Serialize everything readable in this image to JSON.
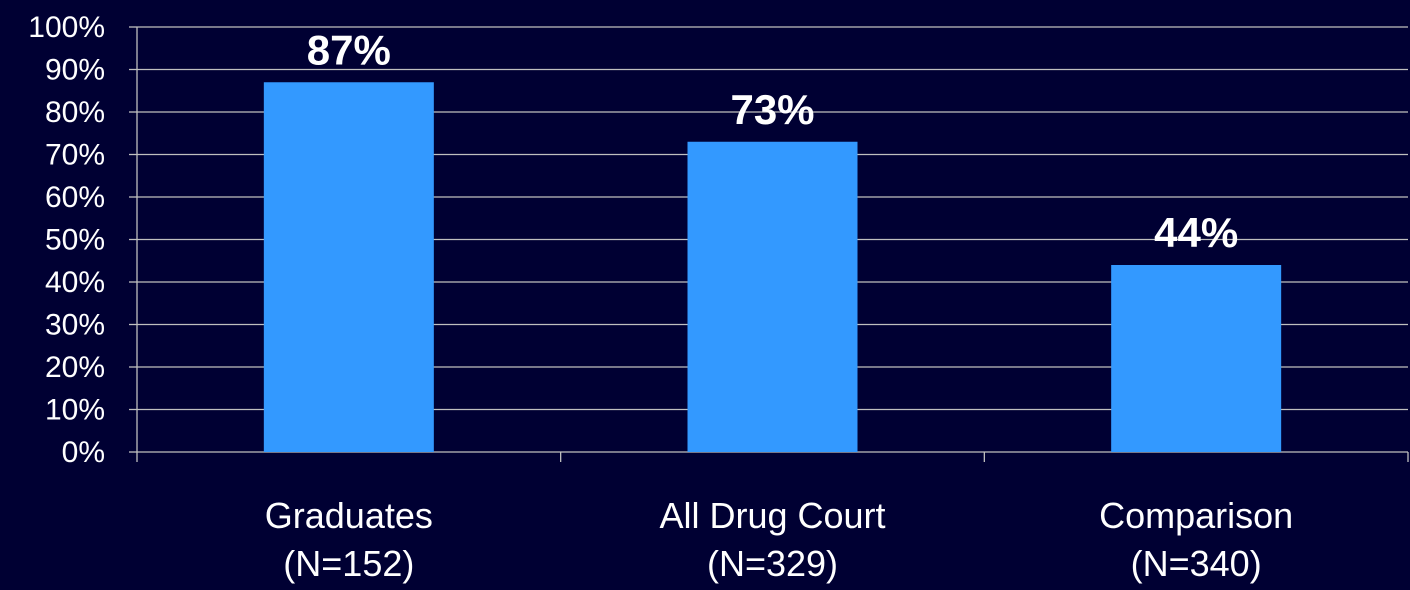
{
  "chart_data": {
    "type": "bar",
    "categories": [
      "Graduates",
      "All Drug Court",
      "Comparison"
    ],
    "category_sublabels": [
      "(N=152)",
      "(N=329)",
      "(N=340)"
    ],
    "values": [
      87,
      73,
      44
    ],
    "data_labels": [
      "87%",
      "73%",
      "44%"
    ],
    "ylim": [
      0,
      100
    ],
    "y_ticks": [
      0,
      10,
      20,
      30,
      40,
      50,
      60,
      70,
      80,
      90,
      100
    ],
    "y_tick_labels": [
      "0%",
      "10%",
      "20%",
      "30%",
      "40%",
      "50%",
      "60%",
      "70%",
      "80%",
      "90%",
      "100%"
    ],
    "grid": true,
    "legend": "none",
    "colors": {
      "background": "#000033",
      "bar": "#3399FF",
      "grid": "#BFBFBF",
      "text": "#FFFFFF"
    }
  }
}
